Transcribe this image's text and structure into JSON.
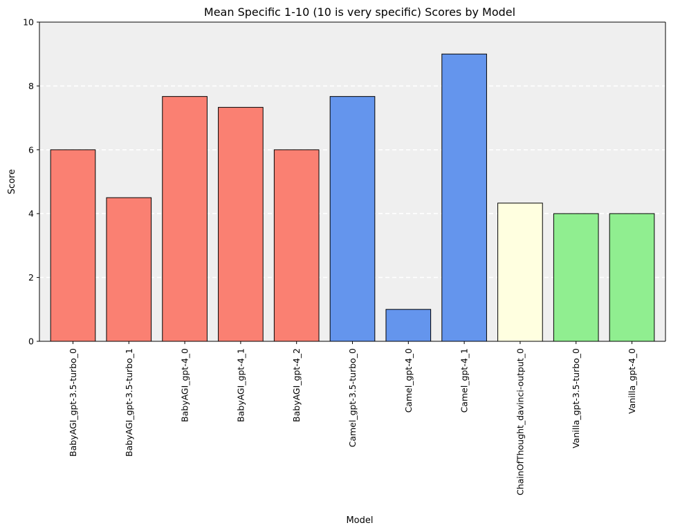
{
  "chart_data": {
    "type": "bar",
    "title": "Mean Specific 1-10 (10 is very specific) Scores by Model",
    "xlabel": "Model",
    "ylabel": "Score",
    "ylim": [
      0,
      10
    ],
    "yticks": [
      0,
      2,
      4,
      6,
      8,
      10
    ],
    "grid": "horizontal dashed white",
    "categories": [
      "BabyAGI_gpt-3.5-turbo_0",
      "BabyAGI_gpt-3.5-turbo_1",
      "BabyAGI_gpt-4_0",
      "BabyAGI_gpt-4_1",
      "BabyAGI_gpt-4_2",
      "Camel_gpt-3.5-turbo_0",
      "Camel_gpt-4_0",
      "Camel_gpt-4_1",
      "ChainOfThought_davinci-output_0",
      "Vanilla_gpt-3.5-turbo_0",
      "Vanilla_gpt-4_0"
    ],
    "values": [
      6.0,
      4.5,
      7.67,
      7.33,
      6.0,
      7.67,
      1.0,
      9.0,
      4.33,
      4.0,
      4.0
    ],
    "colors": [
      "#fa8072",
      "#fa8072",
      "#fa8072",
      "#fa8072",
      "#fa8072",
      "#6495ed",
      "#6495ed",
      "#6495ed",
      "#ffffe0",
      "#90ee90",
      "#90ee90"
    ],
    "plot_background": "#efefef",
    "bar_edge_color": "#000000"
  }
}
